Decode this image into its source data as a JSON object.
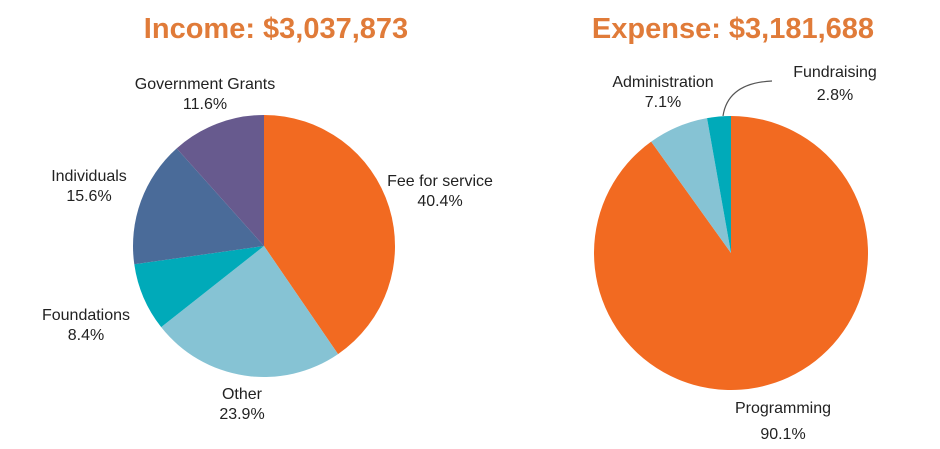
{
  "chart_data": [
    {
      "type": "pie",
      "title": "Income: $3,037,873",
      "slices": [
        {
          "label": "Fee for service",
          "value": 40.4,
          "pct_label": "40.4%",
          "color": "#f26a21"
        },
        {
          "label": "Other",
          "value": 23.9,
          "pct_label": "23.9%",
          "color": "#86c3d4"
        },
        {
          "label": "Foundations",
          "value": 8.4,
          "pct_label": "8.4%",
          "color": "#00aab9"
        },
        {
          "label": "Individuals",
          "value": 15.6,
          "pct_label": "15.6%",
          "color": "#4a6b99"
        },
        {
          "label": "Government Grants",
          "value": 11.6,
          "pct_label": "11.6%",
          "color": "#675a8e"
        }
      ]
    },
    {
      "type": "pie",
      "title": "Expense: $3,181,688",
      "slices": [
        {
          "label": "Programming",
          "value": 90.1,
          "pct_label": "90.1%",
          "color": "#f26a21"
        },
        {
          "label": "Administration",
          "value": 7.1,
          "pct_label": "7.1%",
          "color": "#86c3d4"
        },
        {
          "label": "Fundraising",
          "value": 2.8,
          "pct_label": "2.8%",
          "color": "#00aab9"
        }
      ]
    }
  ]
}
